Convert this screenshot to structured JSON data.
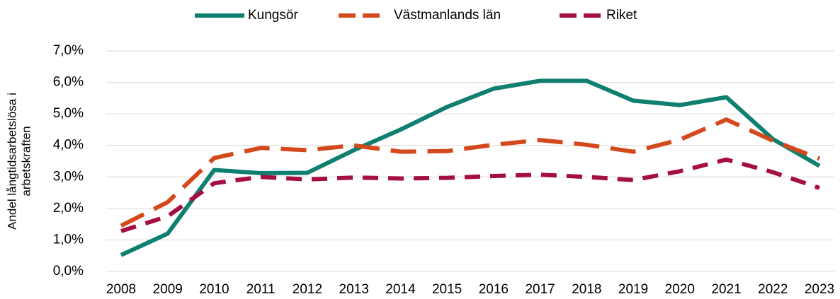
{
  "chart_data": {
    "type": "line",
    "y_label": [
      "Andel långtidsarbetslösa i",
      "arbetskraften"
    ],
    "categories": [
      "2008",
      "2009",
      "2010",
      "2011",
      "2012",
      "2013",
      "2014",
      "2015",
      "2016",
      "2017",
      "2018",
      "2019",
      "2020",
      "2021",
      "2022",
      "2023"
    ],
    "series": [
      {
        "name": "Kungsör",
        "color": "#0f7f70",
        "dash": "none",
        "values": [
          0.52,
          1.2,
          3.22,
          3.12,
          3.13,
          3.85,
          4.5,
          5.22,
          5.8,
          6.05,
          6.05,
          5.42,
          5.28,
          5.53,
          4.2,
          3.35
        ]
      },
      {
        "name": "Västmanlands län",
        "color": "#d4491c",
        "dash": "36 16",
        "values": [
          1.45,
          2.2,
          3.6,
          3.92,
          3.85,
          4.0,
          3.8,
          3.82,
          4.02,
          4.17,
          4.02,
          3.8,
          4.18,
          4.82,
          4.15,
          3.58
        ]
      },
      {
        "name": "Riket",
        "color": "#a50e45",
        "dash": "22 14",
        "values": [
          1.28,
          1.75,
          2.8,
          3.0,
          2.92,
          2.98,
          2.95,
          2.97,
          3.03,
          3.07,
          3.0,
          2.9,
          3.18,
          3.55,
          3.15,
          2.65
        ]
      }
    ],
    "ylim": [
      0,
      7
    ],
    "yticks": [
      {
        "value": 0,
        "label": "0,0%"
      },
      {
        "value": 1,
        "label": "1,0%"
      },
      {
        "value": 2,
        "label": "2,0%"
      },
      {
        "value": 3,
        "label": "3,0%"
      },
      {
        "value": 4,
        "label": "4,0%"
      },
      {
        "value": 5,
        "label": "5,0%"
      },
      {
        "value": 6,
        "label": "6,0%"
      },
      {
        "value": 7,
        "label": "7,0%"
      }
    ],
    "grid": true,
    "legend": "top"
  }
}
